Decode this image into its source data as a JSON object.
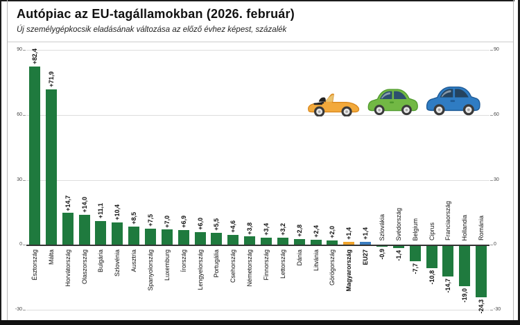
{
  "header": {
    "title": "Autópiac az EU-tagállamokban (2026. február)",
    "subtitle": "Új személygépkocsik eladásának változása az előző évhez képest, százalék"
  },
  "chart_data": {
    "type": "bar",
    "title": "Autópiac az EU-tagállamokban (2026. február)",
    "subtitle": "Új személygépkocsik eladásának változása az előző évhez képest, százalék",
    "xlabel": "",
    "ylabel": "",
    "ylim": [
      -30,
      90
    ],
    "yticks": [
      90,
      60,
      30,
      0,
      -30
    ],
    "ytick_labels": [
      "90",
      "60",
      "30",
      "0",
      "-30"
    ],
    "grid": true,
    "legend": "none",
    "categories": [
      "Észtország",
      "Málta",
      "Horvátország",
      "Olaszország",
      "Bulgária",
      "Szlovénia",
      "Ausztria",
      "Spanyolország",
      "Luxemburg",
      "Írország",
      "Lengyelország",
      "Portugália",
      "Csehország",
      "Németország",
      "Finnország",
      "Lettország",
      "Dánia",
      "Litvánia",
      "Görögország",
      "Magyarország",
      "EU27",
      "Szlovákia",
      "Svédország",
      "Belgium",
      "Ciprus",
      "Franciaország",
      "Hollandia",
      "Románia"
    ],
    "values": [
      82.4,
      71.9,
      14.7,
      14.0,
      11.1,
      10.4,
      8.5,
      7.5,
      7.0,
      6.9,
      6.0,
      5.5,
      4.6,
      3.8,
      3.4,
      3.2,
      2.8,
      2.4,
      2.0,
      1.4,
      1.4,
      -0.9,
      -1.4,
      -7.7,
      -10.8,
      -14.7,
      -19.0,
      -24.3
    ],
    "value_labels": [
      "+82,4",
      "+71,9",
      "+14,7",
      "+14,0",
      "+11,1",
      "+10,4",
      "+8,5",
      "+7,5",
      "+7,0",
      "+6,9",
      "+6,0",
      "+5,5",
      "+4,6",
      "+3,8",
      "+3,4",
      "+3,2",
      "+2,8",
      "+2,4",
      "+2,0",
      "+1,4",
      "+1,4",
      "-0,9",
      "-1,4",
      "-7,7",
      "-10,8",
      "-14,7",
      "-19,0",
      "-24,3"
    ],
    "emphasized": [
      "Magyarország",
      "EU27"
    ],
    "bar_colors": {
      "default": "#1f7a3e",
      "Magyarország": "#efa32b",
      "EU27": "#3d7ec0"
    }
  },
  "decor": {
    "cars": [
      {
        "icon": "convertible-car-icon",
        "body": "#f2a93b",
        "trim": "#d9891f",
        "window": "#e8c678",
        "seat": "#222222"
      },
      {
        "icon": "green-car-icon",
        "body": "#72b844",
        "trim": "#4f9a2d",
        "window": "#2d4f6e",
        "seat": ""
      },
      {
        "icon": "blue-car-icon",
        "body": "#2f7cc3",
        "trim": "#1f5b96",
        "window": "#24435f",
        "seat": ""
      }
    ],
    "wheel_tire": "#3a3a3a",
    "wheel_rim": "#e6e6e6",
    "wheel_hub": "#a8a8a8"
  }
}
